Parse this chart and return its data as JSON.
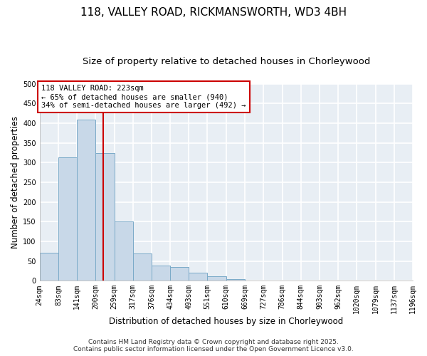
{
  "title": "118, VALLEY ROAD, RICKMANSWORTH, WD3 4BH",
  "subtitle": "Size of property relative to detached houses in Chorleywood",
  "bar_values": [
    72,
    313,
    410,
    325,
    150,
    70,
    38,
    35,
    20,
    12,
    5,
    0,
    0,
    0,
    0,
    0,
    0,
    0,
    0,
    0
  ],
  "bin_edges": [
    24,
    83,
    141,
    200,
    259,
    317,
    376,
    434,
    493,
    551,
    610,
    669,
    727,
    786,
    844,
    903,
    962,
    1020,
    1079,
    1137,
    1196
  ],
  "tick_labels": [
    "24sqm",
    "83sqm",
    "141sqm",
    "200sqm",
    "259sqm",
    "317sqm",
    "376sqm",
    "434sqm",
    "493sqm",
    "551sqm",
    "610sqm",
    "669sqm",
    "727sqm",
    "786sqm",
    "844sqm",
    "903sqm",
    "962sqm",
    "1020sqm",
    "1079sqm",
    "1137sqm",
    "1196sqm"
  ],
  "xlabel": "Distribution of detached houses by size in Chorleywood",
  "ylabel": "Number of detached properties",
  "ylim": [
    0,
    500
  ],
  "yticks": [
    0,
    50,
    100,
    150,
    200,
    250,
    300,
    350,
    400,
    450,
    500
  ],
  "bar_color": "#c8d8e8",
  "bar_edge_color": "#7aaac8",
  "vline_x": 223,
  "vline_color": "#cc0000",
  "annotation_text": "118 VALLEY ROAD: 223sqm\n← 65% of detached houses are smaller (940)\n34% of semi-detached houses are larger (492) →",
  "annotation_box_color": "#ffffff",
  "annotation_box_edge_color": "#cc0000",
  "footer_line1": "Contains HM Land Registry data © Crown copyright and database right 2025.",
  "footer_line2": "Contains public sector information licensed under the Open Government Licence v3.0.",
  "background_color": "#ffffff",
  "plot_bg_color": "#e8eef4",
  "grid_color": "#ffffff",
  "title_fontsize": 11,
  "subtitle_fontsize": 9.5,
  "axis_label_fontsize": 8.5,
  "tick_fontsize": 7,
  "annotation_fontsize": 7.5,
  "footer_fontsize": 6.5
}
